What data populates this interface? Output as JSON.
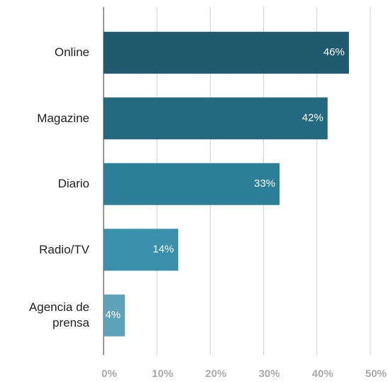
{
  "chart_data": {
    "type": "bar",
    "orientation": "horizontal",
    "categories": [
      "Online",
      "Magazine",
      "Diario",
      "Radio/TV",
      "Agencia de prensa"
    ],
    "values": [
      46,
      42,
      33,
      14,
      4
    ],
    "value_labels": [
      "46%",
      "42%",
      "33%",
      "14%",
      "4%"
    ],
    "colors": [
      "#1f5a6e",
      "#236a80",
      "#2b7f99",
      "#3a90ab",
      "#5fa3b8"
    ],
    "xlim": [
      0,
      50
    ],
    "xticks": [
      {
        "value": 0,
        "label": "0%"
      },
      {
        "value": 10,
        "label": "10%"
      },
      {
        "value": 20,
        "label": "20%"
      },
      {
        "value": 30,
        "label": "30%"
      },
      {
        "value": 40,
        "label": "40%"
      },
      {
        "value": 50,
        "label": "50%"
      }
    ],
    "grid": true
  }
}
